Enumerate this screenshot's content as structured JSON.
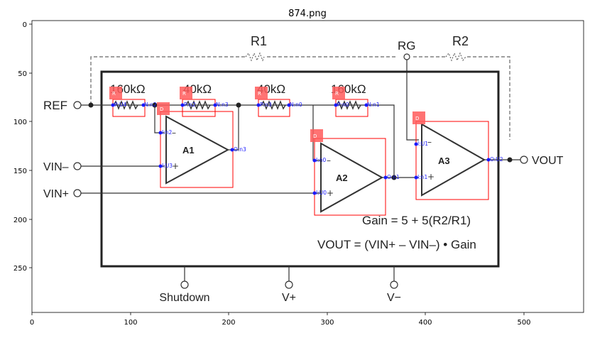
{
  "figure": {
    "title": "874.png"
  },
  "axes": {
    "x_ticks": [
      "0",
      "100",
      "200",
      "300",
      "400",
      "500"
    ],
    "y_ticks": [
      "0",
      "50",
      "100",
      "150",
      "200",
      "250"
    ]
  },
  "schematic": {
    "resistor_labels": {
      "r1": "R1",
      "r2": "R2",
      "rg": "RG",
      "r160a": "160kΩ",
      "r40a": "40kΩ",
      "r40b": "40kΩ",
      "r160b": "160kΩ"
    },
    "pins": {
      "ref": "REF",
      "vin_minus": "VIN–",
      "vin_plus": "VIN+",
      "vout": "VOUT",
      "shutdown": "Shutdown",
      "vplus": "V+",
      "vminus": "V−"
    },
    "amps": {
      "a1": "A1",
      "a2": "A2",
      "a3": "A3"
    },
    "equations": {
      "gain": "Gain = 5 + 5(R2/R1)",
      "vout": "VOUT = (VIN+ – VIN–) • Gain"
    }
  },
  "annotations": {
    "badges": {
      "resistor": "R",
      "opamp": "D"
    },
    "node_labels": [
      "P:U4",
      "N:n2",
      "P:n2",
      "N:n3",
      "P:n3",
      "N:n0",
      "P:n0",
      "N:n1",
      "I:n2",
      "I:U3",
      "O:n3",
      "I:n0",
      "I:U0",
      "O:n1",
      "I:U1",
      "I:n1",
      "O:U2"
    ],
    "colors": {
      "box": "#ff0000",
      "dot": "#1a1aff",
      "badge": "#ff5a5a"
    }
  }
}
